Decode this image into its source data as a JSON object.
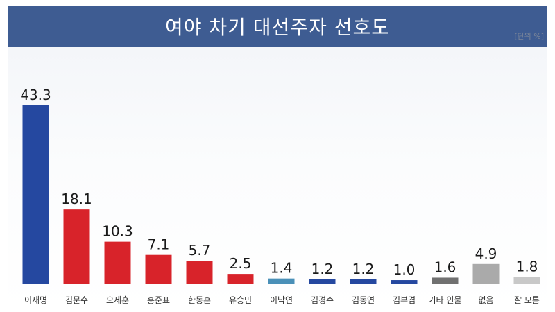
{
  "chart_data": {
    "type": "bar",
    "title": "여야 차기 대선주자 선호도",
    "unit_note": "[단위 %]",
    "categories": [
      "이재명",
      "김문수",
      "오세훈",
      "홍준표",
      "한동훈",
      "유승민",
      "이낙연",
      "김경수",
      "김동연",
      "김부겸",
      "기타 인물",
      "없음",
      "잘 모름"
    ],
    "values": [
      43.3,
      18.1,
      10.3,
      7.1,
      5.7,
      2.5,
      1.4,
      1.2,
      1.2,
      1.0,
      1.6,
      4.9,
      1.8
    ],
    "value_labels": [
      "43.3",
      "18.1",
      "10.3",
      "7.1",
      "5.7",
      "2.5",
      "1.4",
      "1.2",
      "1.2",
      "1.0",
      "1.6",
      "4.9",
      "1.8"
    ],
    "bar_colors": [
      "#2548a0",
      "#d8232a",
      "#d8232a",
      "#d8232a",
      "#d8232a",
      "#d8232a",
      "#4a90b8",
      "#2548a0",
      "#2548a0",
      "#2548a0",
      "#707070",
      "#aaaaaa",
      "#c8c8c8"
    ],
    "ylim": [
      0,
      43.3
    ],
    "grid": false,
    "xlabel": "",
    "ylabel": ""
  }
}
